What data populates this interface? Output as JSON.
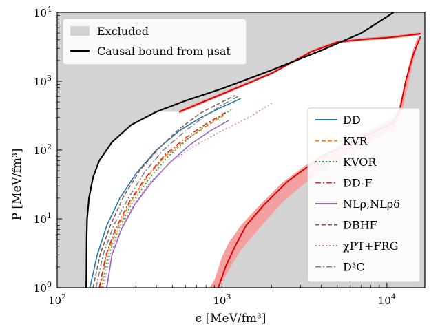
{
  "chart_data": {
    "type": "line",
    "xlabel": "ϵ [MeV/fm³]",
    "ylabel": "P [MeV/fm³]",
    "xscale": "log",
    "yscale": "log",
    "xlim": [
      100,
      17000
    ],
    "ylim": [
      1,
      10000
    ],
    "grid": false,
    "x_ticks": [
      {
        "value": 100,
        "base": "10",
        "exp": "2"
      },
      {
        "value": 1000,
        "base": "10",
        "exp": "3"
      },
      {
        "value": 10000,
        "base": "10",
        "exp": "4"
      }
    ],
    "y_ticks": [
      {
        "value": 1,
        "base": "10",
        "exp": "0"
      },
      {
        "value": 10,
        "base": "10",
        "exp": "1"
      },
      {
        "value": 100,
        "base": "10",
        "exp": "2"
      },
      {
        "value": 1000,
        "base": "10",
        "exp": "3"
      },
      {
        "value": 10000,
        "base": "10",
        "exp": "4"
      }
    ],
    "legend_top": {
      "placement": "top-left",
      "entries": [
        {
          "label": "Excluded",
          "color": "#d3d3d3",
          "style": "patch"
        },
        {
          "label": "Causal bound from μsat",
          "color": "#000000",
          "style": "solid"
        }
      ]
    },
    "legend_models": {
      "placement": "center-right",
      "entries": [
        {
          "label": "DD",
          "color": "#1f77b4",
          "style": "solid"
        },
        {
          "label": "KVR",
          "color": "#ff7f0e",
          "style": "dashed"
        },
        {
          "label": "KVOR",
          "color": "#2ca02c",
          "style": "dotted"
        },
        {
          "label": "DD-F",
          "color": "#d62728",
          "style": "dashdot"
        },
        {
          "label": "NLρ,NLρδ",
          "color": "#9467bd",
          "style": "solid"
        },
        {
          "label": "DBHF",
          "color": "#8c564b",
          "style": "dashed"
        },
        {
          "label": "χPT+FRG",
          "color": "#e377c2",
          "style": "dotted"
        },
        {
          "label": "D³C",
          "color": "#7f7f7f",
          "style": "dashdot"
        }
      ]
    },
    "excluded_region": {
      "causal_bound": [
        [
          150,
          1
        ],
        [
          150.5,
          2
        ],
        [
          151,
          5
        ],
        [
          152,
          10
        ],
        [
          156,
          20
        ],
        [
          165,
          40
        ],
        [
          180,
          70
        ],
        [
          215,
          130
        ],
        [
          280,
          230
        ],
        [
          400,
          360
        ],
        [
          600,
          520
        ],
        [
          1000,
          780
        ],
        [
          2000,
          1450
        ],
        [
          4000,
          2800
        ],
        [
          7000,
          5000
        ],
        [
          11000,
          10000
        ]
      ],
      "upper_boundary": [
        [
          550,
          360
        ],
        [
          1000,
          650
        ],
        [
          2000,
          1300
        ],
        [
          3500,
          2700
        ],
        [
          5000,
          3700
        ],
        [
          7500,
          4100
        ],
        [
          10000,
          4300
        ],
        [
          13000,
          4600
        ],
        [
          16000,
          4900
        ]
      ],
      "lower_boundary": [
        [
          950,
          1
        ],
        [
          1050,
          2
        ],
        [
          1200,
          4
        ],
        [
          1400,
          8
        ],
        [
          1800,
          16
        ],
        [
          2500,
          35
        ],
        [
          4000,
          80
        ],
        [
          7000,
          150
        ],
        [
          11000,
          250
        ],
        [
          12000,
          390
        ],
        [
          13000,
          1000
        ],
        [
          14500,
          2500
        ],
        [
          16000,
          4500
        ]
      ],
      "upper_band": [
        [
          550,
          340,
          380
        ],
        [
          1000,
          620,
          690
        ],
        [
          2000,
          1250,
          1360
        ],
        [
          3500,
          2600,
          2850
        ],
        [
          5000,
          3550,
          3900
        ],
        [
          7500,
          3900,
          4300
        ],
        [
          10000,
          4100,
          4500
        ],
        [
          13000,
          4400,
          4850
        ],
        [
          16000,
          4700,
          5200
        ]
      ],
      "lower_band": [
        [
          840,
          1,
          1
        ],
        [
          900,
          1.3,
          1
        ],
        [
          950,
          1.9,
          1
        ],
        [
          1000,
          2.8,
          1.2
        ],
        [
          1100,
          4.5,
          1.8
        ],
        [
          1300,
          8,
          3.5
        ],
        [
          1700,
          16,
          7.5
        ],
        [
          2300,
          33,
          17
        ],
        [
          3500,
          70,
          40
        ],
        [
          5500,
          130,
          82
        ],
        [
          8500,
          215,
          145
        ],
        [
          11000,
          300,
          205
        ],
        [
          11800,
          400,
          300
        ],
        [
          12500,
          700,
          420
        ],
        [
          13500,
          1600,
          900
        ],
        [
          14500,
          3000,
          2000
        ],
        [
          15500,
          4600,
          3800
        ]
      ],
      "band_color": "#f4a0a0",
      "line_color": "#e00000"
    },
    "series": [
      {
        "name": "DD",
        "color": "#1f77b4",
        "style": "solid",
        "points": [
          [
            158,
            1
          ],
          [
            175,
            3
          ],
          [
            200,
            8
          ],
          [
            240,
            20
          ],
          [
            300,
            45
          ],
          [
            400,
            100
          ],
          [
            550,
            190
          ],
          [
            750,
            300
          ],
          [
            1000,
            420
          ],
          [
            1300,
            560
          ]
        ]
      },
      {
        "name": "KVR",
        "color": "#ff7f0e",
        "style": "dashed",
        "points": [
          [
            182,
            1
          ],
          [
            200,
            3
          ],
          [
            230,
            7
          ],
          [
            280,
            18
          ],
          [
            350,
            40
          ],
          [
            450,
            80
          ],
          [
            600,
            140
          ],
          [
            800,
            220
          ],
          [
            1050,
            330
          ]
        ]
      },
      {
        "name": "KVOR",
        "color": "#2ca02c",
        "style": "dotted",
        "points": [
          [
            186,
            1
          ],
          [
            205,
            3
          ],
          [
            235,
            7
          ],
          [
            285,
            17
          ],
          [
            360,
            38
          ],
          [
            470,
            80
          ],
          [
            630,
            150
          ],
          [
            850,
            250
          ],
          [
            1150,
            390
          ]
        ]
      },
      {
        "name": "DD-F",
        "color": "#d62728",
        "style": "dashdot",
        "points": [
          [
            180,
            1
          ],
          [
            198,
            3
          ],
          [
            225,
            7
          ],
          [
            275,
            18
          ],
          [
            345,
            40
          ],
          [
            450,
            85
          ],
          [
            600,
            150
          ],
          [
            800,
            240
          ],
          [
            1050,
            350
          ]
        ]
      },
      {
        "name": "NLρ,NLρδ",
        "color": "#9467bd",
        "style": "solid",
        "points": [
          [
            200,
            1
          ],
          [
            215,
            3
          ],
          [
            245,
            7
          ],
          [
            295,
            16
          ],
          [
            370,
            33
          ],
          [
            480,
            65
          ],
          [
            640,
            120
          ],
          [
            850,
            190
          ],
          [
            1100,
            270
          ]
        ]
      },
      {
        "name": "DBHF",
        "color": "#8c564b",
        "style": "dashed",
        "points": [
          [
            165,
            1
          ],
          [
            182,
            3
          ],
          [
            210,
            8
          ],
          [
            255,
            22
          ],
          [
            320,
            52
          ],
          [
            420,
            110
          ],
          [
            560,
            210
          ],
          [
            750,
            350
          ],
          [
            1000,
            500
          ],
          [
            1200,
            620
          ]
        ]
      },
      {
        "name": "χPT+FRG",
        "color": "#e377c2",
        "style": "dotted",
        "points": [
          [
            190,
            1
          ],
          [
            210,
            3
          ],
          [
            240,
            7
          ],
          [
            290,
            16
          ],
          [
            370,
            35
          ],
          [
            500,
            70
          ],
          [
            700,
            120
          ],
          [
            1000,
            190
          ],
          [
            1500,
            310
          ],
          [
            2000,
            480
          ]
        ]
      },
      {
        "name": "D³C",
        "color": "#7f7f7f",
        "style": "dashdot",
        "points": [
          [
            172,
            1
          ],
          [
            190,
            3
          ],
          [
            220,
            8
          ],
          [
            270,
            20
          ],
          [
            340,
            48
          ],
          [
            440,
            100
          ],
          [
            600,
            190
          ],
          [
            800,
            320
          ],
          [
            1000,
            450
          ],
          [
            1250,
            600
          ]
        ]
      }
    ]
  }
}
